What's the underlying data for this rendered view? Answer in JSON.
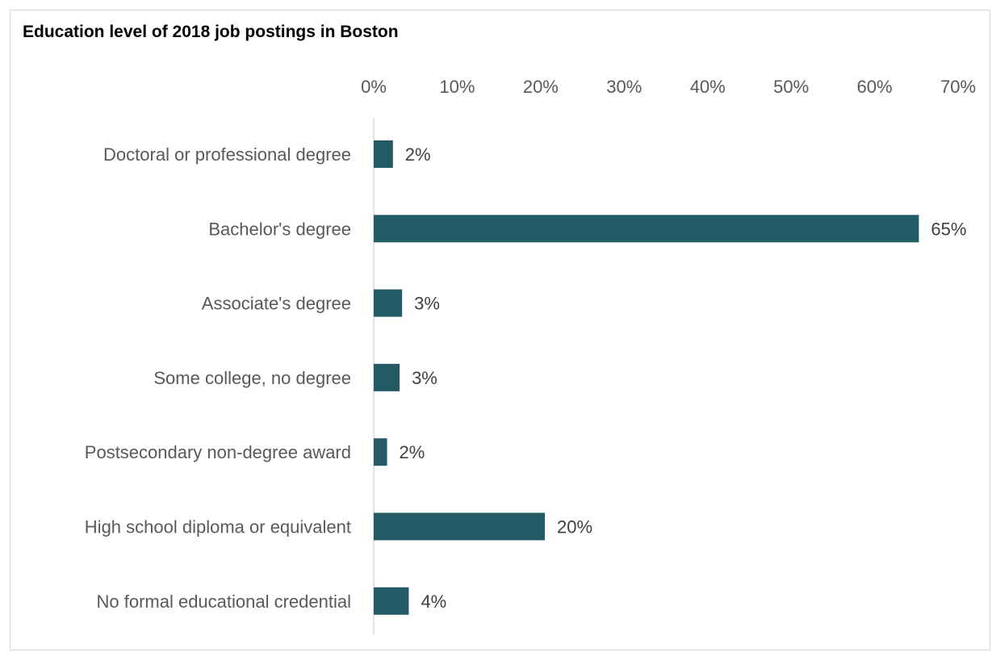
{
  "chart_data": {
    "type": "bar",
    "orientation": "horizontal",
    "title": "Education level of 2018 job postings in Boston",
    "categories": [
      "Doctoral or professional degree",
      "Bachelor's degree",
      "Associate's degree",
      "Some college, no degree",
      "Postsecondary non-degree award",
      "High school diploma or equivalent",
      "No formal educational credential"
    ],
    "values": [
      2.3,
      65.3,
      3.4,
      3.1,
      1.6,
      20.5,
      4.2
    ],
    "data_labels": [
      "2%",
      "65%",
      "3%",
      "3%",
      "2%",
      "20%",
      "4%"
    ],
    "x_ticks": [
      "0%",
      "10%",
      "20%",
      "30%",
      "40%",
      "50%",
      "60%",
      "70%"
    ],
    "xlim": [
      0,
      70
    ],
    "x_axis_position": "top",
    "grid": false,
    "legend": "none",
    "bar_color": "#245a66"
  }
}
